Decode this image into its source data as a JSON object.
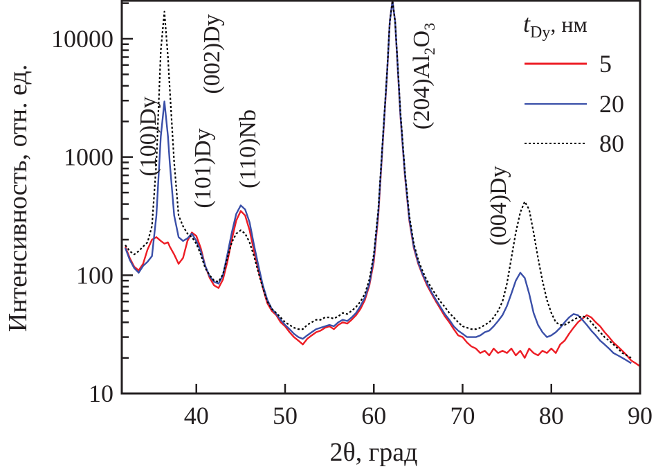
{
  "chart_data": {
    "type": "line",
    "title": "",
    "xlabel": "2θ, град",
    "ylabel": "Интенсивность, отн. ед.",
    "xscale": "linear",
    "yscale": "log",
    "xlim": [
      31.6,
      90
    ],
    "ylim": [
      10,
      21000
    ],
    "xticks": [
      40,
      50,
      60,
      70,
      80,
      90
    ],
    "xtick_labels": [
      "40",
      "50",
      "60",
      "70",
      "80",
      "90"
    ],
    "yticks": [
      10,
      100,
      1000,
      10000
    ],
    "ytick_labels": [
      "10",
      "100",
      "1000",
      "10000"
    ],
    "grid": false,
    "legend": {
      "title_main": "t",
      "title_sub": "Dy",
      "title_unit": ", нм",
      "placement": "top-right",
      "entries": [
        "5",
        "20",
        "80"
      ]
    },
    "annotations": [
      {
        "text": "(100)Dy",
        "x": 34.2,
        "rotation": -90
      },
      {
        "text": "(002)Dy",
        "x": 41.6,
        "rotation": -90
      },
      {
        "text": "(101)Dy",
        "x": 40.6,
        "rotation": -90
      },
      {
        "text": "(110)Nb",
        "x": 45.0,
        "rotation": -90
      },
      {
        "text_main": "(204)Al",
        "sub1": "2",
        "mid": "O",
        "sub2": "3",
        "x": 64.8,
        "rotation": -90
      },
      {
        "text": "(004)Dy",
        "x": 74.8,
        "rotation": -90
      }
    ],
    "x": [
      32,
      32.5,
      33,
      33.5,
      34,
      34.5,
      35,
      35.5,
      36,
      36.4,
      36.8,
      37,
      37.5,
      38,
      38.5,
      39,
      39.5,
      40,
      40.5,
      41,
      41.5,
      42,
      42.5,
      43,
      43.5,
      44,
      44.5,
      45,
      45.5,
      46,
      46.5,
      47,
      47.5,
      48,
      48.5,
      49,
      49.5,
      50,
      50.5,
      51,
      51.5,
      52,
      52.5,
      53,
      53.5,
      54,
      54.5,
      55,
      55.5,
      56,
      56.5,
      57,
      57.5,
      58,
      58.5,
      59,
      59.5,
      60,
      60.5,
      61,
      61.5,
      61.8,
      62.1,
      62.4,
      62.7,
      63,
      63.5,
      64,
      64.5,
      65,
      65.5,
      66,
      66.5,
      67,
      67.5,
      68,
      68.5,
      69,
      69.5,
      70,
      70.5,
      71,
      71.5,
      72,
      72.5,
      73,
      73.5,
      74,
      74.5,
      75,
      75.5,
      76,
      76.5,
      77,
      77.5,
      78,
      78.5,
      79,
      79.5,
      80,
      80.5,
      81,
      81.5,
      82,
      82.5,
      83,
      83.5,
      84,
      84.5,
      85,
      85.5,
      86,
      86.5,
      87,
      87.5,
      88,
      88.5,
      89,
      89.5,
      90
    ],
    "series": [
      {
        "name": "5",
        "color": "#ed1c24",
        "style": "solid",
        "values": [
          175,
          140,
          118,
          110,
          125,
          165,
          200,
          210,
          195,
          185,
          190,
          175,
          150,
          125,
          140,
          195,
          230,
          215,
          170,
          120,
          95,
          82,
          78,
          92,
          130,
          200,
          290,
          350,
          320,
          240,
          160,
          110,
          78,
          58,
          50,
          46,
          40,
          37,
          33,
          30,
          28,
          26,
          29,
          31,
          33,
          34,
          36,
          37,
          35,
          38,
          40,
          39,
          42,
          46,
          52,
          62,
          82,
          130,
          320,
          1300,
          5200,
          14000,
          21000,
          14000,
          5500,
          2200,
          700,
          290,
          170,
          125,
          100,
          82,
          70,
          60,
          52,
          45,
          40,
          35,
          31,
          30,
          27,
          25,
          24,
          22,
          23,
          21,
          24,
          22,
          23,
          22,
          24,
          21,
          23,
          20,
          24,
          22,
          21,
          23,
          22,
          24,
          22,
          26,
          28,
          32,
          36,
          40,
          43,
          46,
          44,
          40,
          37,
          33,
          30,
          27,
          25,
          23,
          21,
          19,
          18,
          17
        ]
      },
      {
        "name": "20",
        "color": "#3a4fa8",
        "style": "solid",
        "values": [
          170,
          135,
          115,
          105,
          120,
          130,
          145,
          320,
          1500,
          2950,
          1500,
          900,
          320,
          210,
          195,
          205,
          225,
          195,
          160,
          120,
          98,
          88,
          85,
          100,
          150,
          230,
          330,
          390,
          360,
          280,
          180,
          120,
          82,
          62,
          52,
          47,
          42,
          38,
          35,
          32,
          30,
          29,
          31,
          33,
          35,
          36,
          37,
          38,
          37,
          40,
          42,
          41,
          44,
          48,
          55,
          65,
          85,
          140,
          340,
          1350,
          5300,
          14000,
          21000,
          14000,
          5600,
          2250,
          720,
          300,
          175,
          128,
          102,
          85,
          72,
          62,
          54,
          47,
          42,
          37,
          34,
          32,
          30,
          30,
          30,
          31,
          33,
          34,
          37,
          41,
          46,
          55,
          70,
          90,
          105,
          95,
          70,
          48,
          38,
          33,
          30,
          31,
          33,
          36,
          40,
          44,
          47,
          46,
          42,
          38,
          34,
          31,
          28,
          26,
          24,
          22,
          21,
          20,
          19,
          18
        ]
      },
      {
        "name": "80",
        "color": "#000000",
        "style": "dotted",
        "values": [
          180,
          160,
          150,
          160,
          175,
          190,
          260,
          900,
          8000,
          17000,
          7000,
          3800,
          900,
          320,
          260,
          225,
          210,
          185,
          150,
          115,
          100,
          90,
          88,
          102,
          140,
          190,
          225,
          240,
          225,
          190,
          145,
          105,
          78,
          60,
          52,
          48,
          44,
          40,
          38,
          36,
          35,
          35,
          38,
          40,
          42,
          42,
          44,
          44,
          43,
          45,
          48,
          47,
          50,
          54,
          60,
          70,
          92,
          150,
          360,
          1400,
          5400,
          14000,
          21000,
          14000,
          5800,
          2400,
          760,
          320,
          185,
          135,
          108,
          90,
          78,
          68,
          60,
          54,
          48,
          44,
          40,
          37,
          36,
          35,
          35,
          36,
          38,
          40,
          44,
          50,
          60,
          85,
          140,
          230,
          340,
          420,
          360,
          230,
          140,
          90,
          62,
          48,
          40,
          38,
          38,
          40,
          42,
          44,
          45,
          44,
          40,
          36,
          33,
          30,
          28,
          26,
          24,
          22,
          21,
          20
        ]
      }
    ]
  }
}
